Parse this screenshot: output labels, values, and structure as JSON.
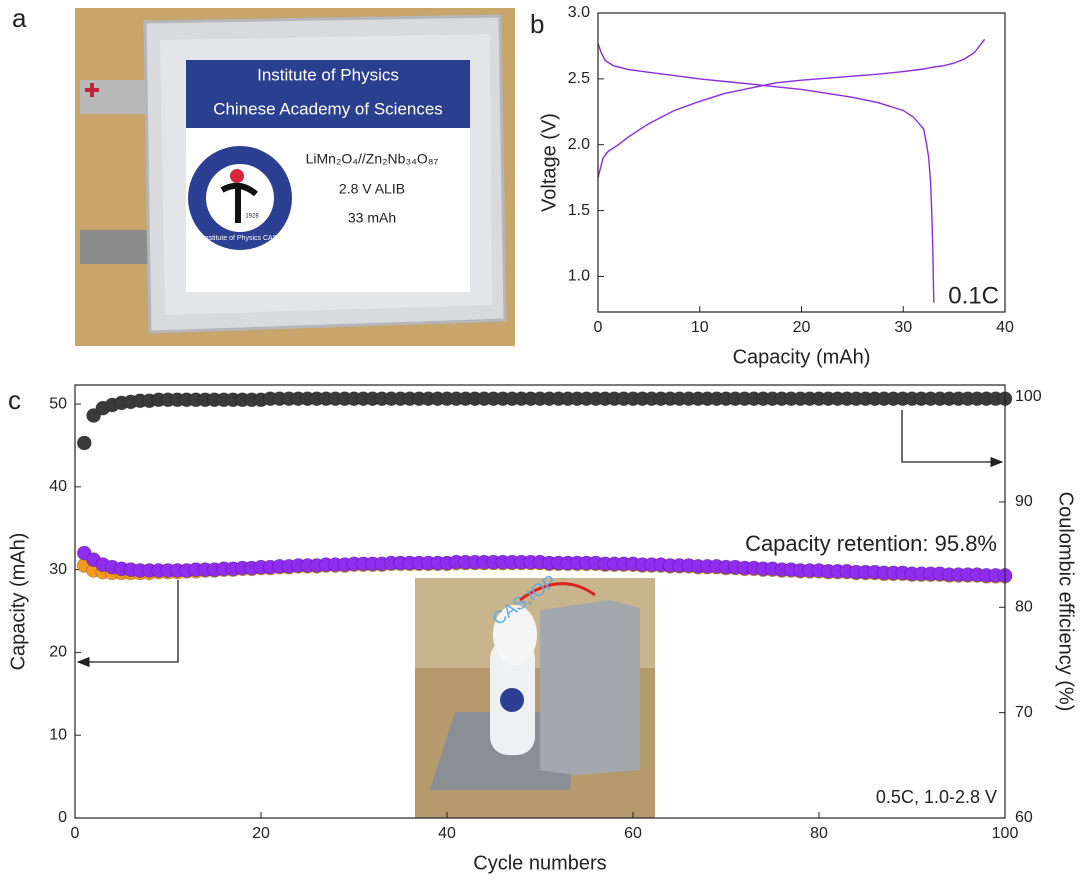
{
  "panel_labels": [
    "a",
    "b",
    "c"
  ],
  "photo": {
    "header": [
      "Institute of Physics",
      "Chinese Academy of Sciences"
    ],
    "lines": [
      "LiMn₂O₄//Zn₂Nb₃₄O₈₇",
      "2.8 V ALIB",
      "33 mAh"
    ],
    "logo_text": [
      "Institute of Physics CAS",
      "1928"
    ],
    "inset_text": "CAS,IOP"
  },
  "chart_data": [
    {
      "type": "line",
      "xlabel": "Capacity (mAh)",
      "ylabel": "Voltage (V)",
      "annotation": "0.1C",
      "xlim": [
        0,
        40
      ],
      "xticks": [
        0,
        10,
        20,
        30,
        40
      ],
      "ylim": [
        0.73,
        3.0
      ],
      "yticks": [
        {
          "value": 1,
          "label": "1.0"
        },
        {
          "value": 1.5,
          "label": "1.5"
        },
        {
          "value": 2,
          "label": "2.0"
        },
        {
          "value": 2.5,
          "label": "2.5"
        },
        {
          "value": 3,
          "label": "3.0"
        }
      ],
      "series": [
        {
          "color": "#8b2be2",
          "x": [
            0,
            0.5,
            1,
            2,
            3,
            5,
            7.5,
            10,
            12.5,
            15,
            17.5,
            20,
            22.5,
            25,
            27.5,
            30,
            32,
            33,
            34,
            35,
            36,
            37,
            37.5,
            38
          ],
          "values": [
            1.75,
            1.9,
            1.95,
            2.0,
            2.06,
            2.16,
            2.26,
            2.33,
            2.39,
            2.43,
            2.47,
            2.49,
            2.505,
            2.52,
            2.535,
            2.555,
            2.575,
            2.59,
            2.6,
            2.62,
            2.65,
            2.7,
            2.75,
            2.8
          ]
        },
        {
          "color": "#8b2be2",
          "x": [
            0,
            0.3,
            0.7,
            1.5,
            3,
            5,
            7.5,
            10,
            12.5,
            15,
            17.5,
            20,
            22.5,
            25,
            27.5,
            30,
            31,
            32,
            32.3,
            32.5,
            32.7,
            32.8,
            32.9,
            33
          ],
          "values": [
            2.77,
            2.7,
            2.64,
            2.6,
            2.57,
            2.55,
            2.525,
            2.5,
            2.48,
            2.46,
            2.44,
            2.42,
            2.39,
            2.36,
            2.32,
            2.26,
            2.21,
            2.12,
            2.0,
            1.9,
            1.7,
            1.5,
            1.2,
            0.8
          ]
        }
      ]
    },
    {
      "type": "scatter",
      "xlabel": "Cycle numbers",
      "ylabel": "Capacity (mAh)",
      "y2label": "Coulombic efficiency (%)",
      "annotations": [
        "Capacity retention: 95.8%",
        "0.5C, 1.0-2.8 V"
      ],
      "xlim": [
        0,
        100
      ],
      "xticks": [
        0,
        20,
        40,
        60,
        80,
        100
      ],
      "ylim": [
        0,
        52.3
      ],
      "yticks": [
        0,
        10,
        20,
        30,
        40,
        50
      ],
      "y2lim": [
        60,
        101.1
      ],
      "y2ticks": [
        60,
        70,
        80,
        90,
        100
      ],
      "x": [
        1,
        2,
        3,
        4,
        5,
        6,
        7,
        8,
        9,
        10,
        11,
        12,
        13,
        14,
        15,
        16,
        17,
        18,
        19,
        20,
        21,
        22,
        23,
        24,
        25,
        26,
        27,
        28,
        29,
        30,
        31,
        32,
        33,
        34,
        35,
        36,
        37,
        38,
        39,
        40,
        41,
        42,
        43,
        44,
        45,
        46,
        47,
        48,
        49,
        50,
        51,
        52,
        53,
        54,
        55,
        56,
        57,
        58,
        59,
        60,
        61,
        62,
        63,
        64,
        65,
        66,
        67,
        68,
        69,
        70,
        71,
        72,
        73,
        74,
        75,
        76,
        77,
        78,
        79,
        80,
        81,
        82,
        83,
        84,
        85,
        86,
        87,
        88,
        89,
        90,
        91,
        92,
        93,
        94,
        95,
        96,
        97,
        98,
        99,
        100
      ],
      "series": [
        {
          "color": "#f39a1e",
          "values": [
            30.5,
            29.9,
            29.7,
            29.6,
            29.6,
            29.6,
            29.6,
            29.6,
            29.7,
            29.7,
            29.7,
            29.8,
            29.8,
            29.9,
            29.9,
            30.0,
            30.0,
            30.1,
            30.1,
            30.2,
            30.2,
            30.3,
            30.3,
            30.4,
            30.4,
            30.4,
            30.5,
            30.5,
            30.5,
            30.6,
            30.6,
            30.6,
            30.6,
            30.7,
            30.7,
            30.7,
            30.7,
            30.7,
            30.7,
            30.7,
            30.8,
            30.8,
            30.8,
            30.8,
            30.8,
            30.8,
            30.8,
            30.8,
            30.8,
            30.8,
            30.7,
            30.7,
            30.7,
            30.7,
            30.7,
            30.7,
            30.6,
            30.6,
            30.6,
            30.6,
            30.5,
            30.5,
            30.5,
            30.4,
            30.4,
            30.4,
            30.3,
            30.3,
            30.3,
            30.2,
            30.2,
            30.1,
            30.1,
            30.0,
            30.0,
            29.9,
            29.9,
            29.8,
            29.8,
            29.8,
            29.7,
            29.7,
            29.7,
            29.6,
            29.6,
            29.6,
            29.5,
            29.5,
            29.5,
            29.4,
            29.4,
            29.4,
            29.4,
            29.3,
            29.3,
            29.3,
            29.3,
            29.2,
            29.2,
            29.2
          ]
        },
        {
          "color": "#8f2cf0",
          "values": [
            32.0,
            31.2,
            30.6,
            30.3,
            30.1,
            30.0,
            29.9,
            29.9,
            29.9,
            29.9,
            29.9,
            29.9,
            30.0,
            30.0,
            30.0,
            30.1,
            30.1,
            30.2,
            30.2,
            30.3,
            30.3,
            30.4,
            30.4,
            30.5,
            30.5,
            30.5,
            30.6,
            30.6,
            30.6,
            30.7,
            30.7,
            30.7,
            30.7,
            30.8,
            30.8,
            30.8,
            30.8,
            30.8,
            30.8,
            30.8,
            30.9,
            30.9,
            30.9,
            30.9,
            30.9,
            30.9,
            30.9,
            30.9,
            30.9,
            30.9,
            30.8,
            30.8,
            30.8,
            30.8,
            30.8,
            30.8,
            30.7,
            30.7,
            30.7,
            30.7,
            30.6,
            30.6,
            30.6,
            30.5,
            30.5,
            30.5,
            30.4,
            30.4,
            30.4,
            30.3,
            30.3,
            30.2,
            30.2,
            30.1,
            30.1,
            30.0,
            30.0,
            29.9,
            29.9,
            29.9,
            29.8,
            29.8,
            29.8,
            29.7,
            29.7,
            29.7,
            29.6,
            29.6,
            29.6,
            29.5,
            29.5,
            29.5,
            29.5,
            29.4,
            29.4,
            29.4,
            29.4,
            29.3,
            29.3,
            29.3
          ]
        },
        {
          "color": "#3a3a3a",
          "axis": "y2",
          "values": [
            95.6,
            98.2,
            98.9,
            99.2,
            99.4,
            99.5,
            99.6,
            99.6,
            99.7,
            99.7,
            99.7,
            99.7,
            99.7,
            99.7,
            99.7,
            99.7,
            99.7,
            99.7,
            99.7,
            99.7,
            99.8,
            99.8,
            99.8,
            99.8,
            99.8,
            99.8,
            99.8,
            99.8,
            99.8,
            99.8,
            99.8,
            99.8,
            99.8,
            99.8,
            99.8,
            99.8,
            99.8,
            99.8,
            99.8,
            99.8,
            99.8,
            99.8,
            99.8,
            99.8,
            99.8,
            99.8,
            99.8,
            99.8,
            99.8,
            99.8,
            99.8,
            99.8,
            99.8,
            99.8,
            99.8,
            99.8,
            99.8,
            99.8,
            99.8,
            99.8,
            99.8,
            99.8,
            99.8,
            99.8,
            99.8,
            99.8,
            99.8,
            99.8,
            99.8,
            99.8,
            99.8,
            99.8,
            99.8,
            99.8,
            99.8,
            99.8,
            99.8,
            99.8,
            99.8,
            99.8,
            99.8,
            99.8,
            99.8,
            99.8,
            99.8,
            99.8,
            99.8,
            99.8,
            99.8,
            99.8,
            99.8,
            99.8,
            99.8,
            99.8,
            99.8,
            99.8,
            99.8,
            99.8,
            99.8,
            99.8
          ]
        }
      ]
    }
  ]
}
